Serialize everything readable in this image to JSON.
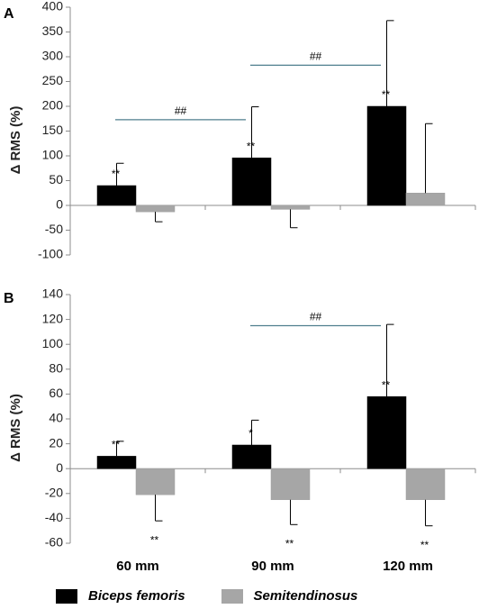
{
  "chart_data": [
    {
      "type": "bar",
      "panel": "A",
      "categories": [
        "60 mm",
        "90 mm",
        "120 mm"
      ],
      "series": [
        {
          "name": "Biceps femoris",
          "color": "#000000",
          "values": [
            40,
            96,
            200
          ],
          "error_up": [
            45,
            103,
            173
          ],
          "error_down": [
            0,
            0,
            0
          ],
          "annotations": [
            "**",
            "**",
            "**"
          ]
        },
        {
          "name": "Semitendinosus",
          "color": "#a6a6a6",
          "values": [
            -13,
            -8,
            25
          ],
          "error_up": [
            0,
            0,
            140
          ],
          "error_down": [
            20,
            37,
            0
          ],
          "annotations": [
            "",
            "",
            ""
          ]
        }
      ],
      "ylabel": "Δ RMS (%)",
      "ylim": [
        -100,
        400
      ],
      "yticks": [
        -100,
        -50,
        0,
        50,
        100,
        150,
        200,
        250,
        300,
        350,
        400
      ],
      "brackets": [
        {
          "from": 0,
          "to": 1,
          "y": 173,
          "label": "##"
        },
        {
          "from": 1,
          "to": 2,
          "y": 283,
          "label": "##"
        }
      ]
    },
    {
      "type": "bar",
      "panel": "B",
      "categories": [
        "60 mm",
        "90 mm",
        "120 mm"
      ],
      "series": [
        {
          "name": "Biceps femoris",
          "color": "#000000",
          "values": [
            10,
            19,
            58
          ],
          "error_up": [
            12,
            20,
            58
          ],
          "error_down": [
            0,
            0,
            0
          ],
          "annotations": [
            "**",
            "*",
            "**"
          ]
        },
        {
          "name": "Semitendinosus",
          "color": "#a6a6a6",
          "values": [
            -21,
            -25,
            -25
          ],
          "error_up": [
            0,
            0,
            0
          ],
          "error_down": [
            21,
            20,
            21
          ],
          "annotations": [
            "**",
            "**",
            "**"
          ]
        }
      ],
      "ylabel": "Δ RMS (%)",
      "ylim": [
        -60,
        140
      ],
      "yticks": [
        -60,
        -40,
        -20,
        0,
        20,
        40,
        60,
        80,
        100,
        120,
        140
      ],
      "brackets": [
        {
          "from": 1,
          "to": 2,
          "y": 115,
          "label": "##"
        }
      ]
    }
  ],
  "bracket_color": "#4f7f8e"
}
